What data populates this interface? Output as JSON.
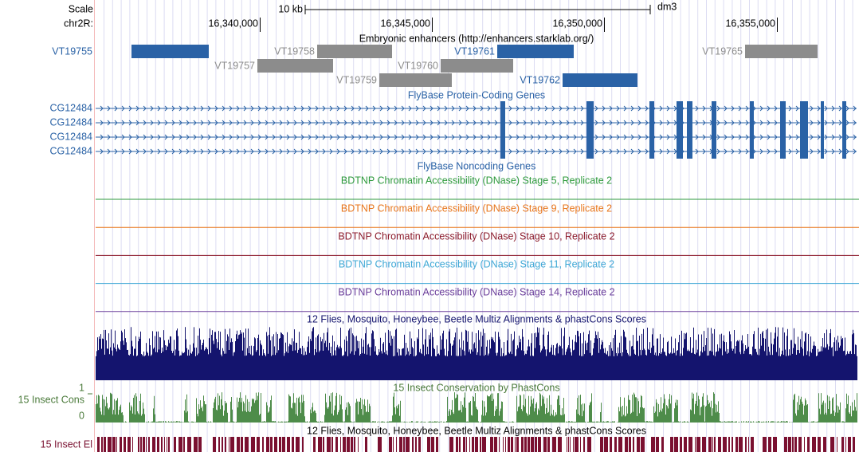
{
  "ruler": {
    "scale": "Scale",
    "chrom": "chr2R:",
    "bar_label": "10 kb",
    "assembly": "dm3",
    "positions": [
      "16,340,000",
      "16,345,000",
      "16,350,000",
      "16,355,000"
    ]
  },
  "tracks": {
    "enhancers": {
      "title": "Embryonic enhancers (http://enhancers.starklab.org/)",
      "items": [
        "VT19755",
        "VT19758",
        "VT19761",
        "VT19765",
        "VT19757",
        "VT19760",
        "VT19759",
        "VT19762"
      ]
    },
    "protein_genes": {
      "title": "FlyBase Protein-Coding Genes",
      "genes": [
        "CG12484",
        "CG12484",
        "CG12484",
        "CG12484"
      ]
    },
    "noncoding": {
      "title": "FlyBase Noncoding Genes"
    },
    "dnase": [
      "BDTNP Chromatin Accessibility (DNase) Stage 5, Replicate 2",
      "BDTNP Chromatin Accessibility (DNase) Stage 9, Replicate 2",
      "BDTNP Chromatin Accessibility (DNase) Stage 10, Replicate 2",
      "BDTNP Chromatin Accessibility (DNase) Stage 11, Replicate 2",
      "BDTNP Chromatin Accessibility (DNase) Stage 14, Replicate 2"
    ],
    "multiz": {
      "title": "12 Flies, Mosquito, Honeybee, Beetle Multiz Alignments & phastCons Scores"
    },
    "cons": {
      "title": "15 Insect Conservation by PhastCons",
      "label": "15 Insect Cons",
      "max": 1,
      "min": 0
    },
    "elements": {
      "title": "12 Flies, Mosquito, Honeybee, Beetle Multiz Alignments & phastCons Scores",
      "label": "15 Insect El"
    }
  }
}
